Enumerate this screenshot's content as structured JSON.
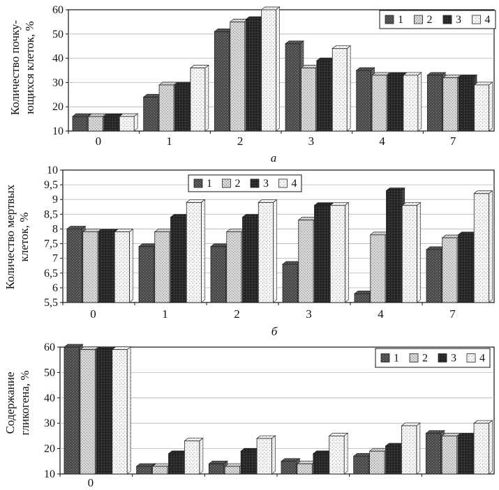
{
  "chart_data": [
    {
      "type": "bar",
      "panel_label": "а",
      "ylabel": "Количество почкующихся клеток, %",
      "ylabel_lines": [
        "Количество почку-",
        "ющихся клеток, %"
      ],
      "categories": [
        "0",
        "1",
        "2",
        "3",
        "4",
        "7"
      ],
      "yticks": [
        "10",
        "20",
        "30",
        "40",
        "50",
        "60"
      ],
      "ylim": [
        10,
        60
      ],
      "grid": true,
      "legend_position": "top-right",
      "series": [
        {
          "name": "1",
          "values": [
            16,
            24,
            51,
            46,
            35,
            33
          ]
        },
        {
          "name": "2",
          "values": [
            16,
            29,
            55,
            36,
            33,
            32
          ]
        },
        {
          "name": "3",
          "values": [
            16,
            29,
            56,
            39,
            33,
            32
          ]
        },
        {
          "name": "4",
          "values": [
            16,
            36,
            60,
            44,
            33,
            29
          ]
        }
      ]
    },
    {
      "type": "bar",
      "panel_label": "б",
      "ylabel": "Количество мертвых клеток, %",
      "ylabel_lines": [
        "Количество мертвых",
        "клеток, %"
      ],
      "categories": [
        "0",
        "1",
        "2",
        "3",
        "4",
        "7"
      ],
      "yticks": [
        "5,5",
        "6",
        "6,5",
        "7",
        "7,5",
        "8",
        "8,5",
        "9",
        "9,5",
        "10"
      ],
      "ylim": [
        5.5,
        10
      ],
      "grid": true,
      "legend_position": "top-left",
      "series": [
        {
          "name": "1",
          "values": [
            8.0,
            7.4,
            7.4,
            6.8,
            5.8,
            7.3
          ]
        },
        {
          "name": "2",
          "values": [
            7.9,
            7.9,
            7.9,
            8.3,
            7.8,
            7.7
          ]
        },
        {
          "name": "3",
          "values": [
            7.9,
            8.4,
            8.4,
            8.8,
            9.3,
            7.8
          ]
        },
        {
          "name": "4",
          "values": [
            7.9,
            8.9,
            8.9,
            8.8,
            8.8,
            9.2
          ]
        }
      ]
    },
    {
      "type": "bar",
      "panel_label": "",
      "ylabel": "Содержание гликогена, %",
      "ylabel_lines": [
        "Содержание",
        "гликогена, %"
      ],
      "categories": [
        "0",
        "",
        "",
        "",
        "",
        ""
      ],
      "yticks": [
        "10",
        "20",
        "30",
        "40",
        "50",
        "60"
      ],
      "ylim": [
        10,
        60
      ],
      "grid": true,
      "legend_position": "top-right",
      "series": [
        {
          "name": "1",
          "values": [
            60,
            13,
            14,
            15,
            17,
            26
          ]
        },
        {
          "name": "2",
          "values": [
            59,
            13,
            13,
            14,
            19,
            25
          ]
        },
        {
          "name": "3",
          "values": [
            59,
            18,
            19,
            18,
            21,
            25
          ]
        },
        {
          "name": "4",
          "values": [
            59,
            23,
            24,
            25,
            29,
            30
          ]
        }
      ]
    }
  ],
  "styles": {
    "series_fills": [
      "#6b6b6b",
      "#d9d9d9",
      "#3a3a3a",
      "#f7f7f7"
    ],
    "frame_color": "#111111",
    "grid_color": "#b5b5b5"
  }
}
